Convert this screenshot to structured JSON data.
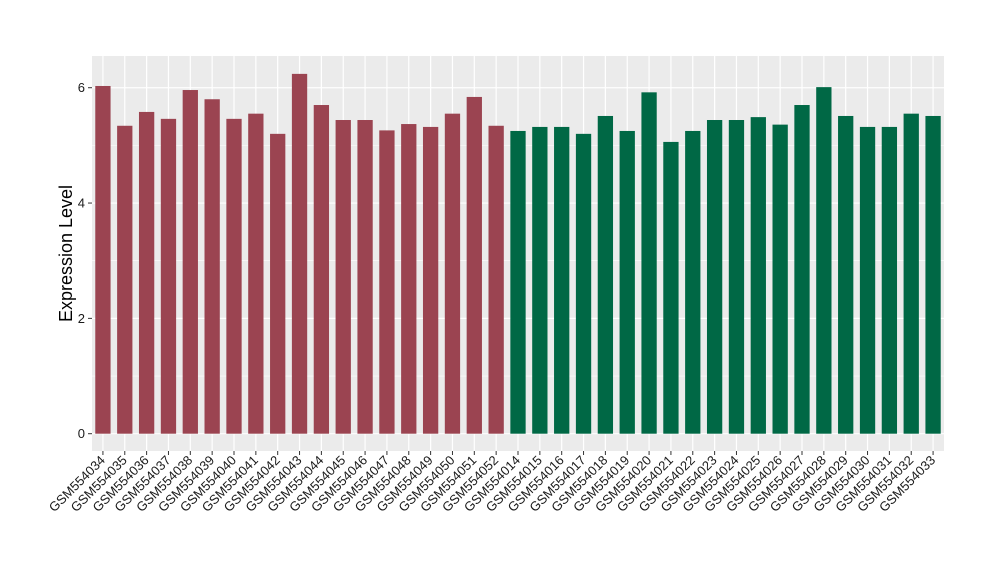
{
  "chart_data": {
    "type": "bar",
    "ylabel": "Expression Level",
    "xlabel": "",
    "ylim": [
      -0.3,
      6.55
    ],
    "yticks": [
      0,
      2,
      4,
      6
    ],
    "grid": true,
    "colors": {
      "group1": "#9B4451",
      "group2": "#006845",
      "panel": "#EBEBEB",
      "grid": "#FFFFFF"
    },
    "categories": [
      "GSM554034",
      "GSM554035",
      "GSM554036",
      "GSM554037",
      "GSM554038",
      "GSM554039",
      "GSM554040",
      "GSM554041",
      "GSM554042",
      "GSM554043",
      "GSM554044",
      "GSM554045",
      "GSM554046",
      "GSM554047",
      "GSM554048",
      "GSM554049",
      "GSM554050",
      "GSM554051",
      "GSM554052",
      "GSM554014",
      "GSM554015",
      "GSM554016",
      "GSM554017",
      "GSM554018",
      "GSM554019",
      "GSM554020",
      "GSM554021",
      "GSM554022",
      "GSM554023",
      "GSM554024",
      "GSM554025",
      "GSM554026",
      "GSM554027",
      "GSM554028",
      "GSM554029",
      "GSM554030",
      "GSM554031",
      "GSM554032",
      "GSM554033"
    ],
    "values": [
      6.03,
      5.34,
      5.58,
      5.46,
      5.96,
      5.8,
      5.46,
      5.55,
      5.2,
      6.24,
      5.7,
      5.44,
      5.44,
      5.26,
      5.37,
      5.32,
      5.55,
      5.84,
      5.34,
      5.25,
      5.32,
      5.32,
      5.2,
      5.51,
      5.25,
      5.92,
      5.06,
      5.25,
      5.44,
      5.44,
      5.49,
      5.36,
      5.7,
      6.01,
      5.51,
      5.32,
      5.32,
      5.55,
      5.51
    ],
    "groups": [
      1,
      1,
      1,
      1,
      1,
      1,
      1,
      1,
      1,
      1,
      1,
      1,
      1,
      1,
      1,
      1,
      1,
      1,
      1,
      2,
      2,
      2,
      2,
      2,
      2,
      2,
      2,
      2,
      2,
      2,
      2,
      2,
      2,
      2,
      2,
      2,
      2,
      2,
      2
    ]
  }
}
